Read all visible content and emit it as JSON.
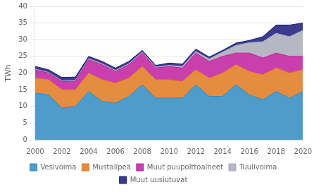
{
  "chart_data": {
    "type": "area",
    "stacked": true,
    "y_label": "TWh",
    "x": [
      2000,
      2001,
      2002,
      2003,
      2004,
      2005,
      2006,
      2007,
      2008,
      2009,
      2010,
      2011,
      2012,
      2013,
      2014,
      2015,
      2016,
      2017,
      2018,
      2019,
      2020
    ],
    "series": [
      {
        "name": "Vesivoima",
        "color": "#2e8bc0",
        "values": [
          14.0,
          13.5,
          9.5,
          10.0,
          14.5,
          11.5,
          11.0,
          13.0,
          16.5,
          12.5,
          12.5,
          12.5,
          16.5,
          13.0,
          13.0,
          16.5,
          13.5,
          12.0,
          14.5,
          12.5,
          14.5
        ]
      },
      {
        "name": "Mustalipeä",
        "color": "#e07820",
        "values": [
          4.5,
          4.5,
          5.5,
          5.0,
          5.5,
          6.5,
          6.0,
          5.5,
          5.5,
          5.5,
          5.5,
          5.0,
          4.5,
          5.5,
          7.0,
          6.0,
          7.0,
          7.5,
          7.0,
          7.5,
          6.5
        ]
      },
      {
        "name": "Muut puupolttoaineet",
        "color": "#bf1f9f",
        "values": [
          2.5,
          2.0,
          2.5,
          2.5,
          4.0,
          4.5,
          3.5,
          4.0,
          4.0,
          3.5,
          4.0,
          4.0,
          5.0,
          5.0,
          5.0,
          3.5,
          5.5,
          5.0,
          4.5,
          5.0,
          4.0
        ]
      },
      {
        "name": "Tuulivoima",
        "color": "#a8aab8",
        "values": [
          0.2,
          0.2,
          0.2,
          0.3,
          0.3,
          0.3,
          0.3,
          0.3,
          0.3,
          0.3,
          0.3,
          0.5,
          0.5,
          0.7,
          1.3,
          2.3,
          3.1,
          4.9,
          5.9,
          5.9,
          7.8
        ]
      },
      {
        "name": "Muut uusiutuvat",
        "color": "#1a1a7a",
        "values": [
          0.8,
          0.8,
          1.0,
          1.0,
          0.7,
          0.7,
          0.7,
          0.7,
          0.5,
          0.5,
          0.7,
          0.7,
          0.7,
          0.6,
          0.5,
          0.7,
          0.7,
          1.5,
          2.5,
          3.5,
          2.2
        ]
      }
    ],
    "xlim": [
      2000,
      2020
    ],
    "xticks": [
      2000,
      2002,
      2004,
      2006,
      2008,
      2010,
      2012,
      2014,
      2016,
      2018,
      2020
    ],
    "ylim": [
      0,
      40
    ],
    "yticks": [
      0,
      5,
      10,
      15,
      20,
      25,
      30,
      35,
      40
    ],
    "grid": "y",
    "legend": "bottom"
  }
}
